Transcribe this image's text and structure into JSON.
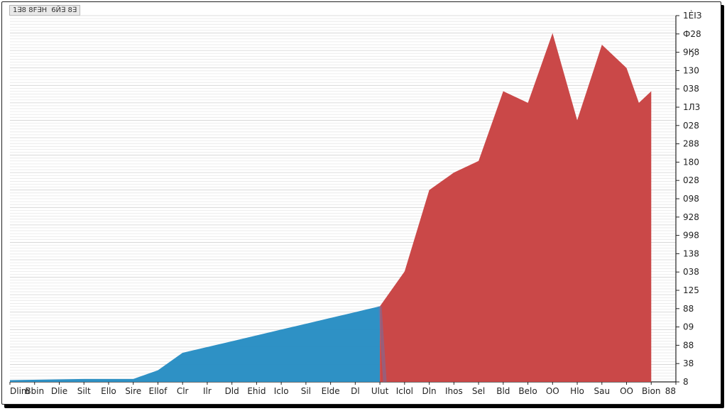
{
  "legend": {
    "labels": [
      "1∃8 8F∃H",
      "6Й∃ 8∃"
    ]
  },
  "chart_data": {
    "type": "area",
    "title": "",
    "xlabel": "",
    "ylabel": "",
    "grid": true,
    "legend_position": "top-left",
    "x_categories": [
      "Dlim",
      "Bbin",
      "Dlie",
      "Silt",
      "Ello",
      "Sire",
      "Ellof",
      "Clr",
      "Ilr",
      "Dld",
      "Ehid",
      "Iclo",
      "Sil",
      "Elde",
      "Dl",
      "Ulut",
      "Iclol",
      "Dln",
      "Ihos",
      "Sel",
      "Bld",
      "Belo",
      "OO",
      "Hlo",
      "Sau",
      "OO",
      "Bion",
      "88"
    ],
    "y_ticks": [
      "8",
      "38",
      "88",
      "09",
      "88",
      "125",
      "038",
      "138",
      "998",
      "928",
      "098",
      "028",
      "180",
      "288",
      "028",
      "1Л3",
      "038",
      "130",
      "9Ӄ8",
      "Ф28",
      "1ЀІЗ"
    ],
    "series": [
      {
        "color": "#2a8fc4",
        "points": [
          [
            0,
            0.3
          ],
          [
            3,
            0.5
          ],
          [
            5,
            0.5
          ],
          [
            6,
            2
          ],
          [
            7,
            5
          ],
          [
            8,
            6
          ],
          [
            9,
            7
          ],
          [
            10,
            8
          ],
          [
            11,
            9
          ],
          [
            12,
            10
          ],
          [
            13,
            11
          ],
          [
            14,
            12
          ],
          [
            15,
            13
          ]
        ]
      },
      {
        "color": "#c94444",
        "points": [
          [
            15,
            13
          ],
          [
            16,
            19
          ],
          [
            17,
            33
          ],
          [
            18,
            36
          ],
          [
            19,
            38
          ],
          [
            20,
            50
          ],
          [
            21,
            48
          ],
          [
            22,
            60
          ],
          [
            23,
            45
          ],
          [
            24,
            58
          ],
          [
            25,
            54
          ],
          [
            25.5,
            48
          ],
          [
            26,
            50
          ]
        ]
      }
    ]
  }
}
